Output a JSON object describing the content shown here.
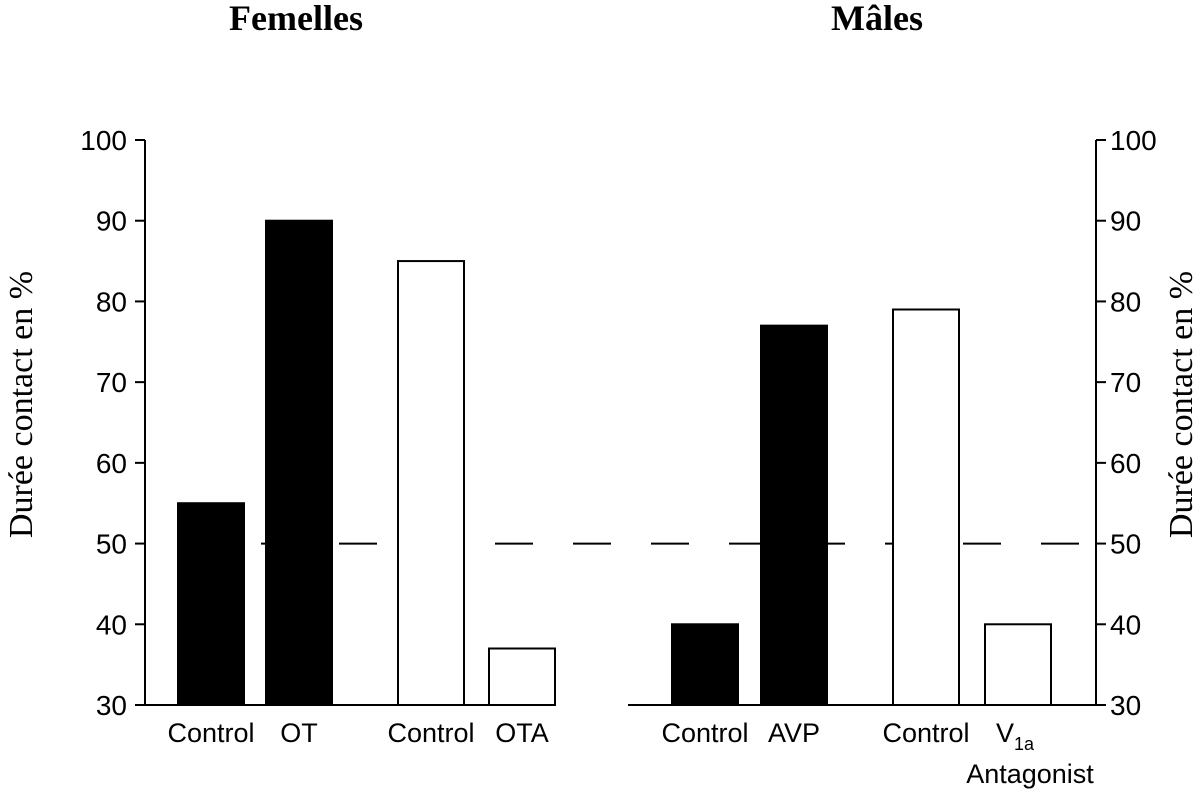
{
  "chart_data": {
    "type": "bar",
    "ylabel": "Durée contact en %",
    "ylim": [
      30,
      100
    ],
    "yticks": [
      30,
      40,
      50,
      60,
      70,
      80,
      90,
      100
    ],
    "reference_line": {
      "value": 50,
      "style": "dashed"
    },
    "panels": [
      {
        "title": "Femelles",
        "groups": [
          {
            "bars": [
              {
                "category": "Control",
                "value": 55,
                "fill": "#000000"
              },
              {
                "category": "OT",
                "value": 90,
                "fill": "#000000"
              }
            ]
          },
          {
            "bars": [
              {
                "category": "Control",
                "value": 85,
                "fill": "#ffffff"
              },
              {
                "category": "OTA",
                "value": 37,
                "fill": "#ffffff"
              }
            ]
          }
        ]
      },
      {
        "title": "Mâles",
        "groups": [
          {
            "bars": [
              {
                "category": "Control",
                "value": 40,
                "fill": "#000000"
              },
              {
                "category": "AVP",
                "value": 77,
                "fill": "#000000"
              }
            ]
          },
          {
            "bars": [
              {
                "category": "Control",
                "value": 79,
                "fill": "#ffffff"
              },
              {
                "category": "V1a Antagonist",
                "value": 40,
                "fill": "#ffffff",
                "label_main": "V",
                "label_sub": "1a",
                "label_line2": "Antagonist"
              }
            ]
          }
        ]
      }
    ]
  }
}
